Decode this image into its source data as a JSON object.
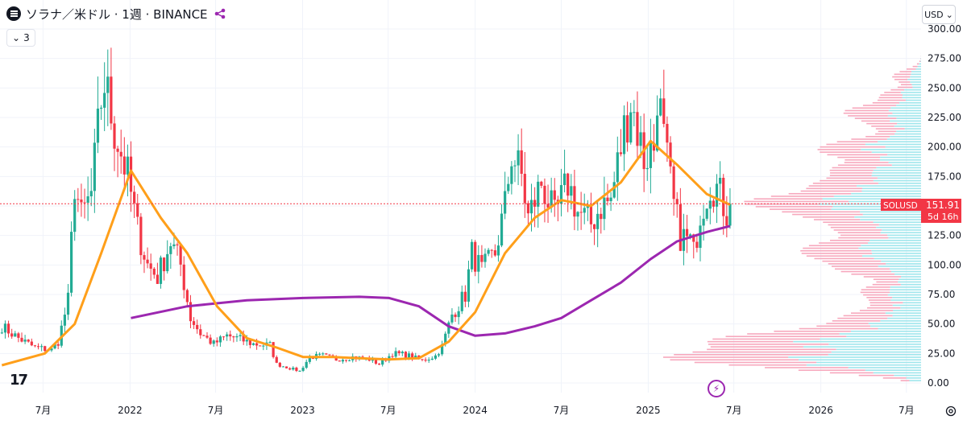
{
  "header": {
    "title": "ソラナ／米ドル · 1週 · BINANCE",
    "symbol_icon": "solana-logo-icon",
    "share_icon": "purple-share-icon"
  },
  "indicator_toggle": {
    "label": "3",
    "icon": "chevron-down-icon"
  },
  "currency": {
    "label": "USD",
    "icon": "chevron-down-icon"
  },
  "price_badge": {
    "ticker": "SOLUSD",
    "price": "151.91",
    "countdown": "5d 16h",
    "color": "#f23645"
  },
  "logo": {
    "text": "17"
  },
  "chart_data": {
    "type": "candlestick",
    "interval": "1W",
    "y_axis": {
      "ticks": [
        "300.00",
        "275.00",
        "250.00",
        "225.00",
        "200.00",
        "175.00",
        "150.00",
        "125.00",
        "100.00",
        "75.00",
        "50.00",
        "25.00",
        "0.00"
      ],
      "range": [
        0,
        300
      ],
      "scale": "linear",
      "position": "right"
    },
    "x_axis": {
      "tick_labels": [
        "7月",
        "2022",
        "7月",
        "2023",
        "7月",
        "2024",
        "7月",
        "2025",
        "7月",
        "2026",
        "7月"
      ],
      "tick_dates": [
        "2021-07",
        "2022-01",
        "2022-07",
        "2023-01",
        "2023-07",
        "2024-01",
        "2024-07",
        "2025-01",
        "2025-07",
        "2026-01",
        "2026-07"
      ],
      "range": [
        "2021-04",
        "2026-08"
      ]
    },
    "last_price": 151.91,
    "colors": {
      "up": "#22ab94",
      "down": "#f23645",
      "ma_short": "#ff9f1a",
      "ma_long": "#9c27b0"
    },
    "price_path": [
      [
        "2021-04-05",
        48
      ],
      [
        "2021-05-10",
        38
      ],
      [
        "2021-06-14",
        30
      ],
      [
        "2021-07-19",
        28
      ],
      [
        "2021-08-02",
        35
      ],
      [
        "2021-08-23",
        70
      ],
      [
        "2021-09-06",
        170
      ],
      [
        "2021-09-20",
        140
      ],
      [
        "2021-10-11",
        160
      ],
      [
        "2021-11-01",
        240
      ],
      [
        "2021-11-08",
        255
      ],
      [
        "2021-11-29",
        215
      ],
      [
        "2021-12-27",
        175
      ],
      [
        "2022-01-17",
        130
      ],
      [
        "2022-02-07",
        100
      ],
      [
        "2022-02-28",
        90
      ],
      [
        "2022-03-28",
        120
      ],
      [
        "2022-04-18",
        100
      ],
      [
        "2022-05-09",
        55
      ],
      [
        "2022-05-30",
        42
      ],
      [
        "2022-06-27",
        33
      ],
      [
        "2022-07-25",
        40
      ],
      [
        "2022-08-15",
        38
      ],
      [
        "2022-09-19",
        33
      ],
      [
        "2022-10-24",
        32
      ],
      [
        "2022-11-07",
        16
      ],
      [
        "2022-12-26",
        10
      ],
      [
        "2023-01-16",
        22
      ],
      [
        "2023-02-13",
        23
      ],
      [
        "2023-03-13",
        20
      ],
      [
        "2023-04-17",
        22
      ],
      [
        "2023-05-22",
        20
      ],
      [
        "2023-06-12",
        16
      ],
      [
        "2023-07-10",
        25
      ],
      [
        "2023-08-07",
        24
      ],
      [
        "2023-09-11",
        19
      ],
      [
        "2023-10-09",
        23
      ],
      [
        "2023-10-23",
        31
      ],
      [
        "2023-11-13",
        58
      ],
      [
        "2023-12-11",
        75
      ],
      [
        "2023-12-25",
        110
      ],
      [
        "2024-01-15",
        95
      ],
      [
        "2024-02-12",
        110
      ],
      [
        "2024-03-04",
        150
      ],
      [
        "2024-03-18",
        195
      ],
      [
        "2024-04-08",
        175
      ],
      [
        "2024-04-22",
        140
      ],
      [
        "2024-05-20",
        170
      ],
      [
        "2024-06-17",
        140
      ],
      [
        "2024-07-15",
        170
      ],
      [
        "2024-08-05",
        145
      ],
      [
        "2024-09-02",
        135
      ],
      [
        "2024-09-23",
        150
      ],
      [
        "2024-10-14",
        155
      ],
      [
        "2024-11-11",
        215
      ],
      [
        "2024-11-25",
        240
      ],
      [
        "2024-12-23",
        190
      ],
      [
        "2025-01-13",
        200
      ],
      [
        "2025-01-20",
        250
      ],
      [
        "2025-02-03",
        205
      ],
      [
        "2025-02-24",
        150
      ],
      [
        "2025-03-10",
        125
      ],
      [
        "2025-03-31",
        120
      ],
      [
        "2025-04-07",
        110
      ],
      [
        "2025-04-21",
        145
      ],
      [
        "2025-05-12",
        170
      ],
      [
        "2025-05-26",
        165
      ],
      [
        "2025-06-16",
        145
      ],
      [
        "2025-06-23",
        151.91
      ]
    ],
    "ma_short": [
      [
        "2021-04-05",
        15
      ],
      [
        "2021-07-05",
        25
      ],
      [
        "2021-09-06",
        50
      ],
      [
        "2021-11-01",
        110
      ],
      [
        "2022-01-03",
        180
      ],
      [
        "2022-03-07",
        140
      ],
      [
        "2022-05-02",
        110
      ],
      [
        "2022-07-04",
        65
      ],
      [
        "2022-09-05",
        38
      ],
      [
        "2022-11-07",
        30
      ],
      [
        "2023-01-02",
        22
      ],
      [
        "2023-03-06",
        22
      ],
      [
        "2023-05-01",
        21
      ],
      [
        "2023-07-03",
        20
      ],
      [
        "2023-09-04",
        21
      ],
      [
        "2023-11-06",
        35
      ],
      [
        "2024-01-01",
        60
      ],
      [
        "2024-03-04",
        110
      ],
      [
        "2024-05-06",
        140
      ],
      [
        "2024-07-01",
        155
      ],
      [
        "2024-09-02",
        150
      ],
      [
        "2024-11-04",
        170
      ],
      [
        "2025-01-06",
        205
      ],
      [
        "2025-03-03",
        185
      ],
      [
        "2025-05-05",
        160
      ],
      [
        "2025-06-23",
        151
      ]
    ],
    "ma_long": [
      [
        "2022-01-03",
        55
      ],
      [
        "2022-05-02",
        65
      ],
      [
        "2022-09-05",
        70
      ],
      [
        "2023-01-02",
        72
      ],
      [
        "2023-05-01",
        73
      ],
      [
        "2023-07-03",
        72
      ],
      [
        "2023-09-04",
        65
      ],
      [
        "2023-11-06",
        48
      ],
      [
        "2024-01-01",
        40
      ],
      [
        "2024-03-04",
        42
      ],
      [
        "2024-05-06",
        48
      ],
      [
        "2024-07-01",
        55
      ],
      [
        "2024-09-02",
        70
      ],
      [
        "2024-11-04",
        85
      ],
      [
        "2025-01-06",
        105
      ],
      [
        "2025-03-03",
        120
      ],
      [
        "2025-05-05",
        128
      ],
      [
        "2025-06-23",
        133
      ]
    ],
    "volume_profile": {
      "position": "right",
      "colors": [
        "#f7a8bd",
        "#9fe6ec"
      ]
    }
  }
}
